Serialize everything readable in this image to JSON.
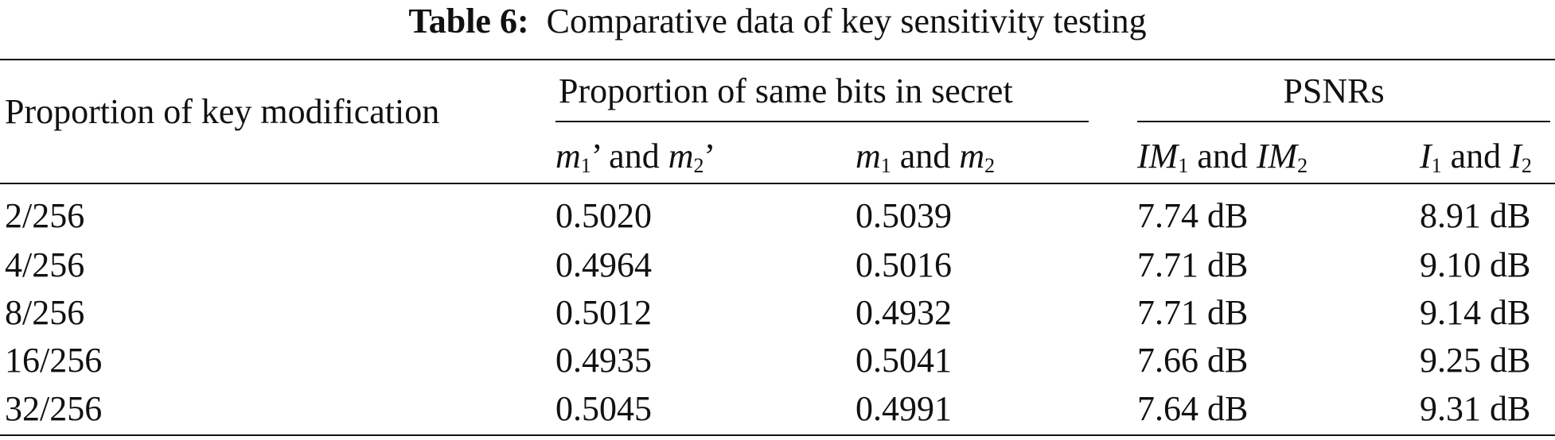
{
  "title": {
    "label": "Table 6:",
    "text": "Comparative data of key sensitivity testing"
  },
  "table": {
    "row_header": "Proportion of key modification",
    "groups": [
      "Proportion of same bits in secret",
      "PSNRs"
    ],
    "columns": [
      [
        "m",
        "1",
        "’ and ",
        "m",
        "2",
        "’"
      ],
      [
        "m",
        "1",
        " and ",
        "m",
        "2"
      ],
      [
        "IM",
        "1",
        " and ",
        "IM",
        "2"
      ],
      [
        "I",
        "1",
        " and ",
        "I",
        "2"
      ]
    ],
    "rows": [
      [
        "2/256",
        "0.5020",
        "0.5039",
        "7.74 dB",
        "8.91 dB"
      ],
      [
        "4/256",
        "0.4964",
        "0.5016",
        "7.71 dB",
        "9.10 dB"
      ],
      [
        "8/256",
        "0.5012",
        "0.4932",
        "7.71 dB",
        "9.14 dB"
      ],
      [
        "16/256",
        "0.4935",
        "0.5041",
        "7.66 dB",
        "9.25 dB"
      ],
      [
        "32/256",
        "0.5045",
        "0.4991",
        "7.64 dB",
        "9.31 dB"
      ]
    ]
  }
}
